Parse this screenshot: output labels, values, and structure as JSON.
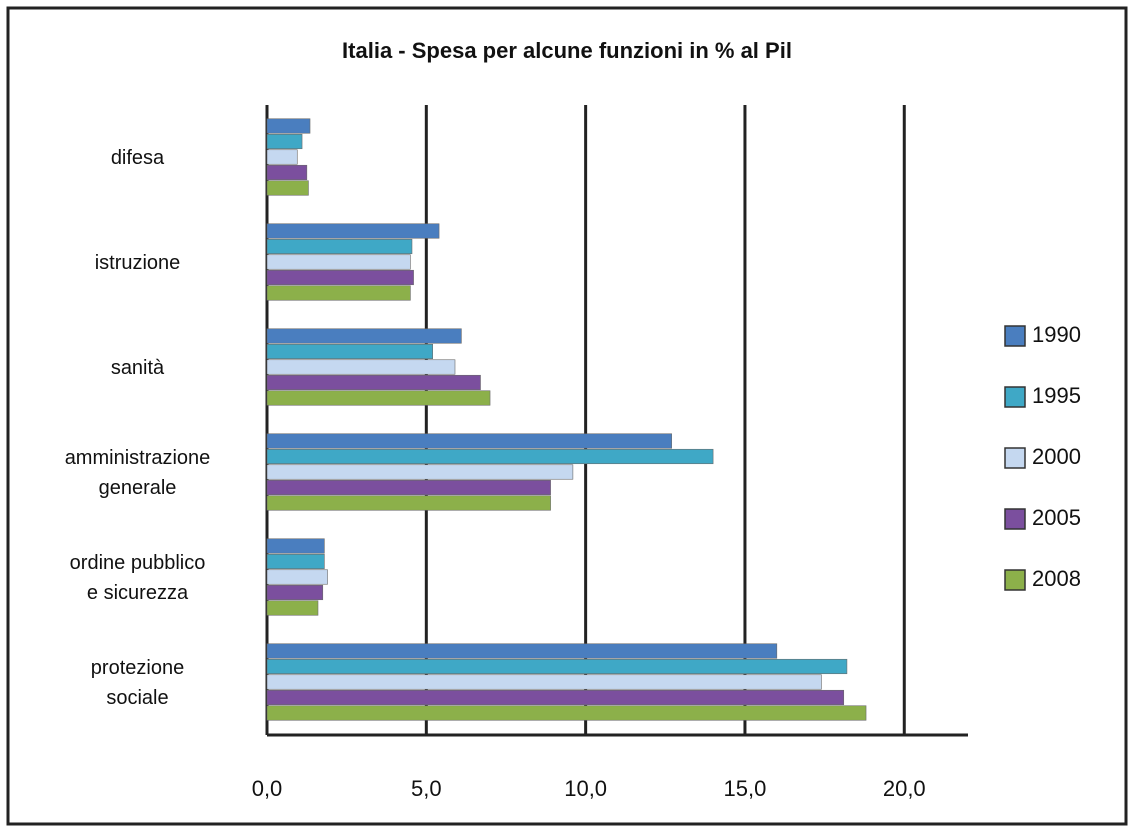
{
  "chart_data": {
    "type": "bar",
    "orientation": "horizontal",
    "title": "Italia - Spesa per alcune funzioni in % al Pil",
    "categories": [
      "difesa",
      "istruzione",
      "sanità",
      "amministrazione\ngenerale",
      "ordine pubblico\ne sicurezza",
      "protezione\nsociale"
    ],
    "series": [
      {
        "name": "1990",
        "color": "#4a7ebf",
        "values": [
          1.35,
          5.4,
          6.1,
          12.7,
          1.8,
          16.0
        ]
      },
      {
        "name": "1995",
        "color": "#3fa8c6",
        "values": [
          1.1,
          4.55,
          5.2,
          14.0,
          1.8,
          18.2
        ]
      },
      {
        "name": "2000",
        "color": "#c5d8f0",
        "values": [
          0.95,
          4.5,
          5.9,
          9.6,
          1.9,
          17.4
        ]
      },
      {
        "name": "2005",
        "color": "#7b4f9e",
        "values": [
          1.25,
          4.6,
          6.7,
          8.9,
          1.75,
          18.1
        ]
      },
      {
        "name": "2008",
        "color": "#8cb04a",
        "values": [
          1.3,
          4.5,
          7.0,
          8.9,
          1.6,
          18.8
        ]
      }
    ],
    "xlim": [
      0,
      22
    ],
    "xticks": [
      {
        "value": 0,
        "label": "0,0"
      },
      {
        "value": 5,
        "label": "5,0"
      },
      {
        "value": 10,
        "label": "10,0"
      },
      {
        "value": 15,
        "label": "15,0"
      },
      {
        "value": 20,
        "label": "20,0"
      }
    ],
    "grid": true,
    "legend": "right"
  }
}
